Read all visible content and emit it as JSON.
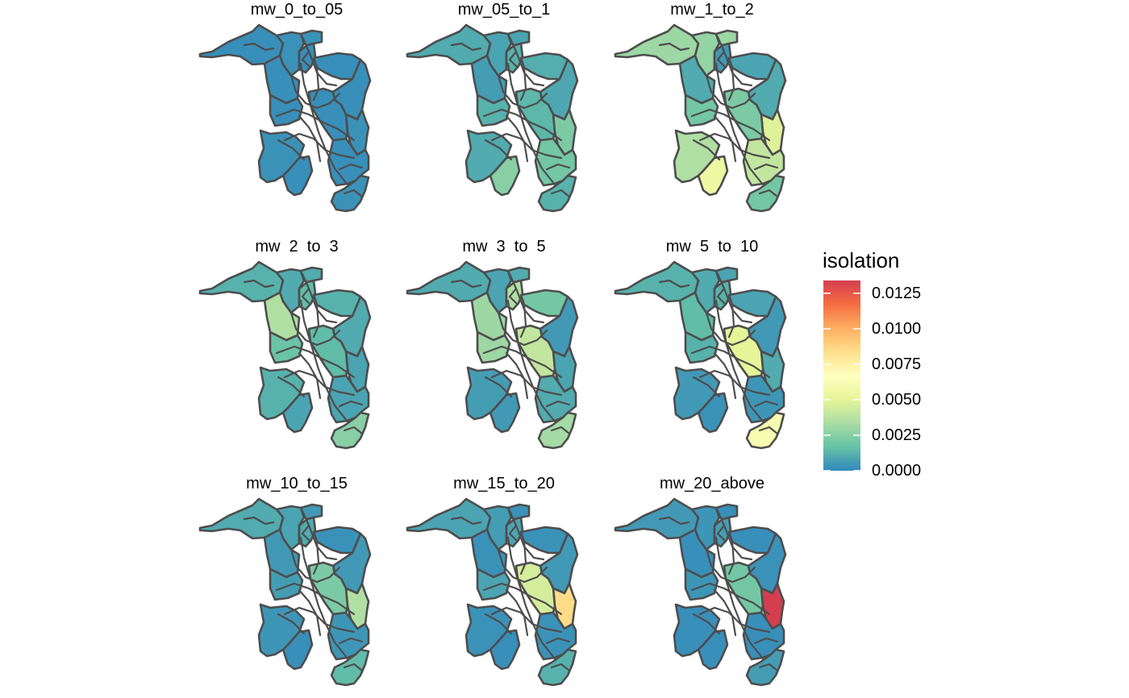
{
  "legend": {
    "title": "isolation",
    "min": 0,
    "max": 0.0134,
    "ticks": [
      {
        "value": 0.0125,
        "label": "0.0125"
      },
      {
        "value": 0.01,
        "label": "0.0100"
      },
      {
        "value": 0.0075,
        "label": "0.0075"
      },
      {
        "value": 0.005,
        "label": "0.0050"
      },
      {
        "value": 0.0025,
        "label": "0.0025"
      },
      {
        "value": 0.0,
        "label": "0.0000"
      }
    ],
    "colors": [
      "#3288bd",
      "#66c2a5",
      "#abdda4",
      "#e6f598",
      "#ffffbf",
      "#fee08b",
      "#fdae61",
      "#f46d43",
      "#d53e4f"
    ]
  },
  "panels": [
    {
      "title": "mw_0_to_05",
      "values": [
        0.0002,
        0.0003,
        0.0002,
        0.0002,
        0.0003,
        0.0002,
        0.0002,
        0.0002,
        0.0003,
        0.0002,
        0.0003,
        0.0002,
        0.0002,
        0.0003
      ]
    },
    {
      "title": "mw_05_to_1",
      "values": [
        0.001,
        0.0008,
        0.0006,
        0.0012,
        0.0008,
        0.0011,
        0.0009,
        0.0012,
        0.001,
        0.0025,
        0.0022,
        0.002,
        0.0014,
        0.0012
      ]
    },
    {
      "title": "mw_1_to_2",
      "values": [
        0.003,
        0.0028,
        0.001,
        0.0005,
        0.003,
        0.0008,
        0.001,
        0.002,
        0.0035,
        0.0055,
        0.0048,
        0.004,
        0.0022,
        0.002
      ]
    },
    {
      "title": "mw  2  to  3",
      "values": [
        0.0012,
        0.001,
        0.0035,
        0.0015,
        0.001,
        0.0012,
        0.001,
        0.0018,
        0.0012,
        0.0008,
        0.0008,
        0.0008,
        0.0015,
        0.0025
      ]
    },
    {
      "title": "mw  3  to  5",
      "values": [
        0.001,
        0.0008,
        0.003,
        0.0035,
        0.001,
        0.002,
        0.0005,
        0.003,
        0.0006,
        0.0005,
        0.0008,
        0.001,
        0.004,
        0.0032
      ]
    },
    {
      "title": "mw  5  to  10",
      "values": [
        0.0012,
        0.001,
        0.0015,
        0.0012,
        0.0008,
        0.0008,
        0.0005,
        0.0012,
        0.0005,
        0.0003,
        0.001,
        0.0004,
        0.005,
        0.006
      ]
    },
    {
      "title": "mw_10_to_15",
      "values": [
        0.001,
        0.0008,
        0.0005,
        0.001,
        0.0005,
        0.0003,
        0.0005,
        0.0006,
        0.0004,
        0.0002,
        0.0035,
        0.0004,
        0.0022,
        0.0015
      ]
    },
    {
      "title": "mw_15_to_20",
      "values": [
        0.0008,
        0.0006,
        0.0003,
        0.0008,
        0.0003,
        0.0003,
        0.0005,
        0.0008,
        0.0003,
        0.0002,
        0.0085,
        0.0003,
        0.0045,
        0.0012
      ]
    },
    {
      "title": "mw_20_above",
      "values": [
        0.0005,
        0.0004,
        0.0002,
        0.0006,
        0.0002,
        0.0002,
        0.0003,
        0.0004,
        0.0002,
        0.0002,
        0.0134,
        0.0002,
        0.002,
        0.0006
      ]
    }
  ]
}
